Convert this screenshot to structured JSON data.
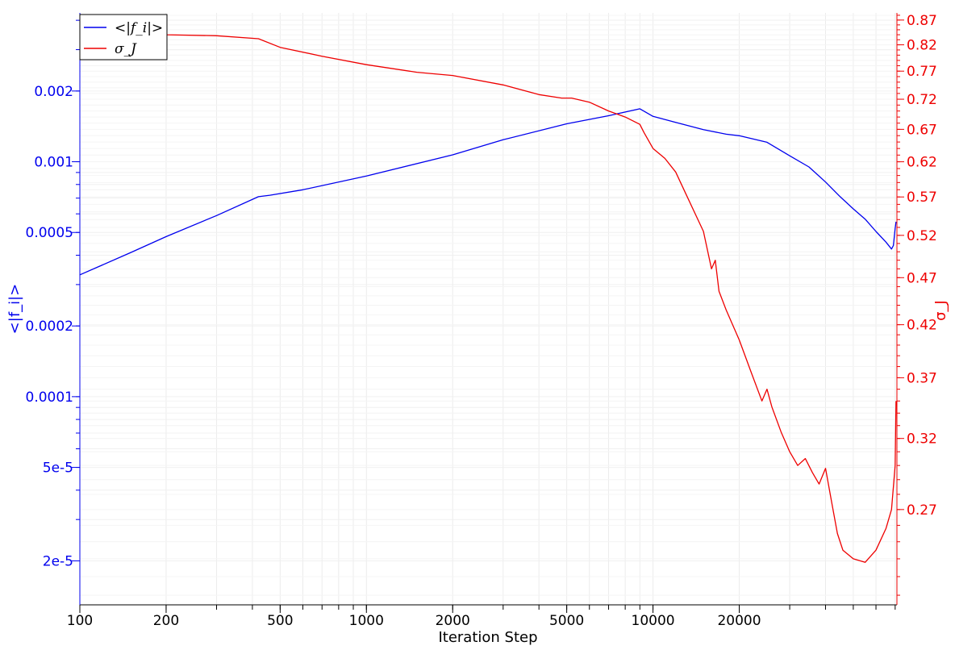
{
  "chart_data": {
    "type": "line",
    "title": "",
    "xlabel": "Iteration Step",
    "ylabel_left": "<|f_i|>",
    "ylabel_right": "σ_J",
    "x_scale": "log",
    "y_left_scale": "log",
    "y_right_scale": "log",
    "xlim": [
      100,
      71000
    ],
    "ylim_left": [
      1.3e-05,
      0.0043
    ],
    "ylim_right": [
      0.215,
      0.885
    ],
    "grid": true,
    "legend_placement": "top-left",
    "x_ticks": [
      {
        "value": 100,
        "label": "100"
      },
      {
        "value": 200,
        "label": "200"
      },
      {
        "value": 500,
        "label": "500"
      },
      {
        "value": 1000,
        "label": "1000"
      },
      {
        "value": 2000,
        "label": "2000"
      },
      {
        "value": 5000,
        "label": "5000"
      },
      {
        "value": 10000,
        "label": "10000"
      },
      {
        "value": 20000,
        "label": "20000"
      }
    ],
    "y_left_ticks": [
      {
        "value": 0.002,
        "label": "0.002"
      },
      {
        "value": 0.001,
        "label": "0.001"
      },
      {
        "value": 0.0005,
        "label": "0.0005"
      },
      {
        "value": 0.0002,
        "label": "0.0002"
      },
      {
        "value": 0.0001,
        "label": "0.0001"
      },
      {
        "value": 5e-05,
        "label": "5e-5"
      },
      {
        "value": 2e-05,
        "label": "2e-5"
      }
    ],
    "y_right_ticks": [
      {
        "value": 0.87,
        "label": "0.87"
      },
      {
        "value": 0.82,
        "label": "0.82"
      },
      {
        "value": 0.77,
        "label": "0.77"
      },
      {
        "value": 0.72,
        "label": "0.72"
      },
      {
        "value": 0.67,
        "label": "0.67"
      },
      {
        "value": 0.62,
        "label": "0.62"
      },
      {
        "value": 0.57,
        "label": "0.57"
      },
      {
        "value": 0.52,
        "label": "0.52"
      },
      {
        "value": 0.47,
        "label": "0.47"
      },
      {
        "value": 0.42,
        "label": "0.42"
      },
      {
        "value": 0.37,
        "label": "0.37"
      },
      {
        "value": 0.32,
        "label": "0.32"
      },
      {
        "value": 0.27,
        "label": "0.27"
      }
    ],
    "legend": [
      {
        "label": "<|f_i|>",
        "color": "#0000ee"
      },
      {
        "label": "σ_J",
        "color": "#ee0000"
      }
    ],
    "series": [
      {
        "name": "<|f_i|>",
        "axis": "left",
        "color": "#0000ee",
        "x": [
          100,
          150,
          200,
          300,
          420,
          460,
          600,
          1000,
          2000,
          3000,
          5000,
          7000,
          9000,
          10000,
          12000,
          15000,
          18000,
          20000,
          25000,
          30000,
          35000,
          40000,
          45000,
          50000,
          55000,
          60000,
          65000,
          68000,
          69000,
          70000,
          70500
        ],
        "y": [
          0.00033,
          0.00041,
          0.00048,
          0.00059,
          0.00071,
          0.00072,
          0.00076,
          0.00087,
          0.00107,
          0.00124,
          0.00145,
          0.00157,
          0.00168,
          0.00156,
          0.00147,
          0.00137,
          0.00131,
          0.00129,
          0.00121,
          0.00106,
          0.00095,
          0.00082,
          0.00071,
          0.00063,
          0.00057,
          0.000505,
          0.000455,
          0.000425,
          0.00044,
          0.00052,
          0.000555
        ]
      },
      {
        "name": "σ_J",
        "axis": "right",
        "color": "#ee0000",
        "x": [
          100,
          150,
          200,
          300,
          420,
          500,
          700,
          1000,
          1500,
          2000,
          3000,
          4000,
          4800,
          5200,
          6000,
          7000,
          8000,
          9000,
          9300,
          10000,
          11000,
          12000,
          13000,
          15000,
          16000,
          16500,
          17000,
          18000,
          20000,
          22000,
          24000,
          25000,
          26000,
          28000,
          30000,
          32000,
          34000,
          36000,
          38000,
          40000,
          42000,
          44000,
          46000,
          50000,
          55000,
          60000,
          65000,
          68000,
          70000,
          70500
        ],
        "y": [
          0.852,
          0.845,
          0.84,
          0.838,
          0.832,
          0.815,
          0.798,
          0.782,
          0.768,
          0.762,
          0.745,
          0.728,
          0.722,
          0.722,
          0.715,
          0.7,
          0.69,
          0.678,
          0.665,
          0.64,
          0.625,
          0.605,
          0.575,
          0.525,
          0.48,
          0.49,
          0.455,
          0.435,
          0.405,
          0.375,
          0.35,
          0.36,
          0.345,
          0.325,
          0.31,
          0.3,
          0.305,
          0.295,
          0.287,
          0.298,
          0.275,
          0.255,
          0.245,
          0.24,
          0.238,
          0.245,
          0.258,
          0.27,
          0.3,
          0.35
        ]
      }
    ]
  }
}
